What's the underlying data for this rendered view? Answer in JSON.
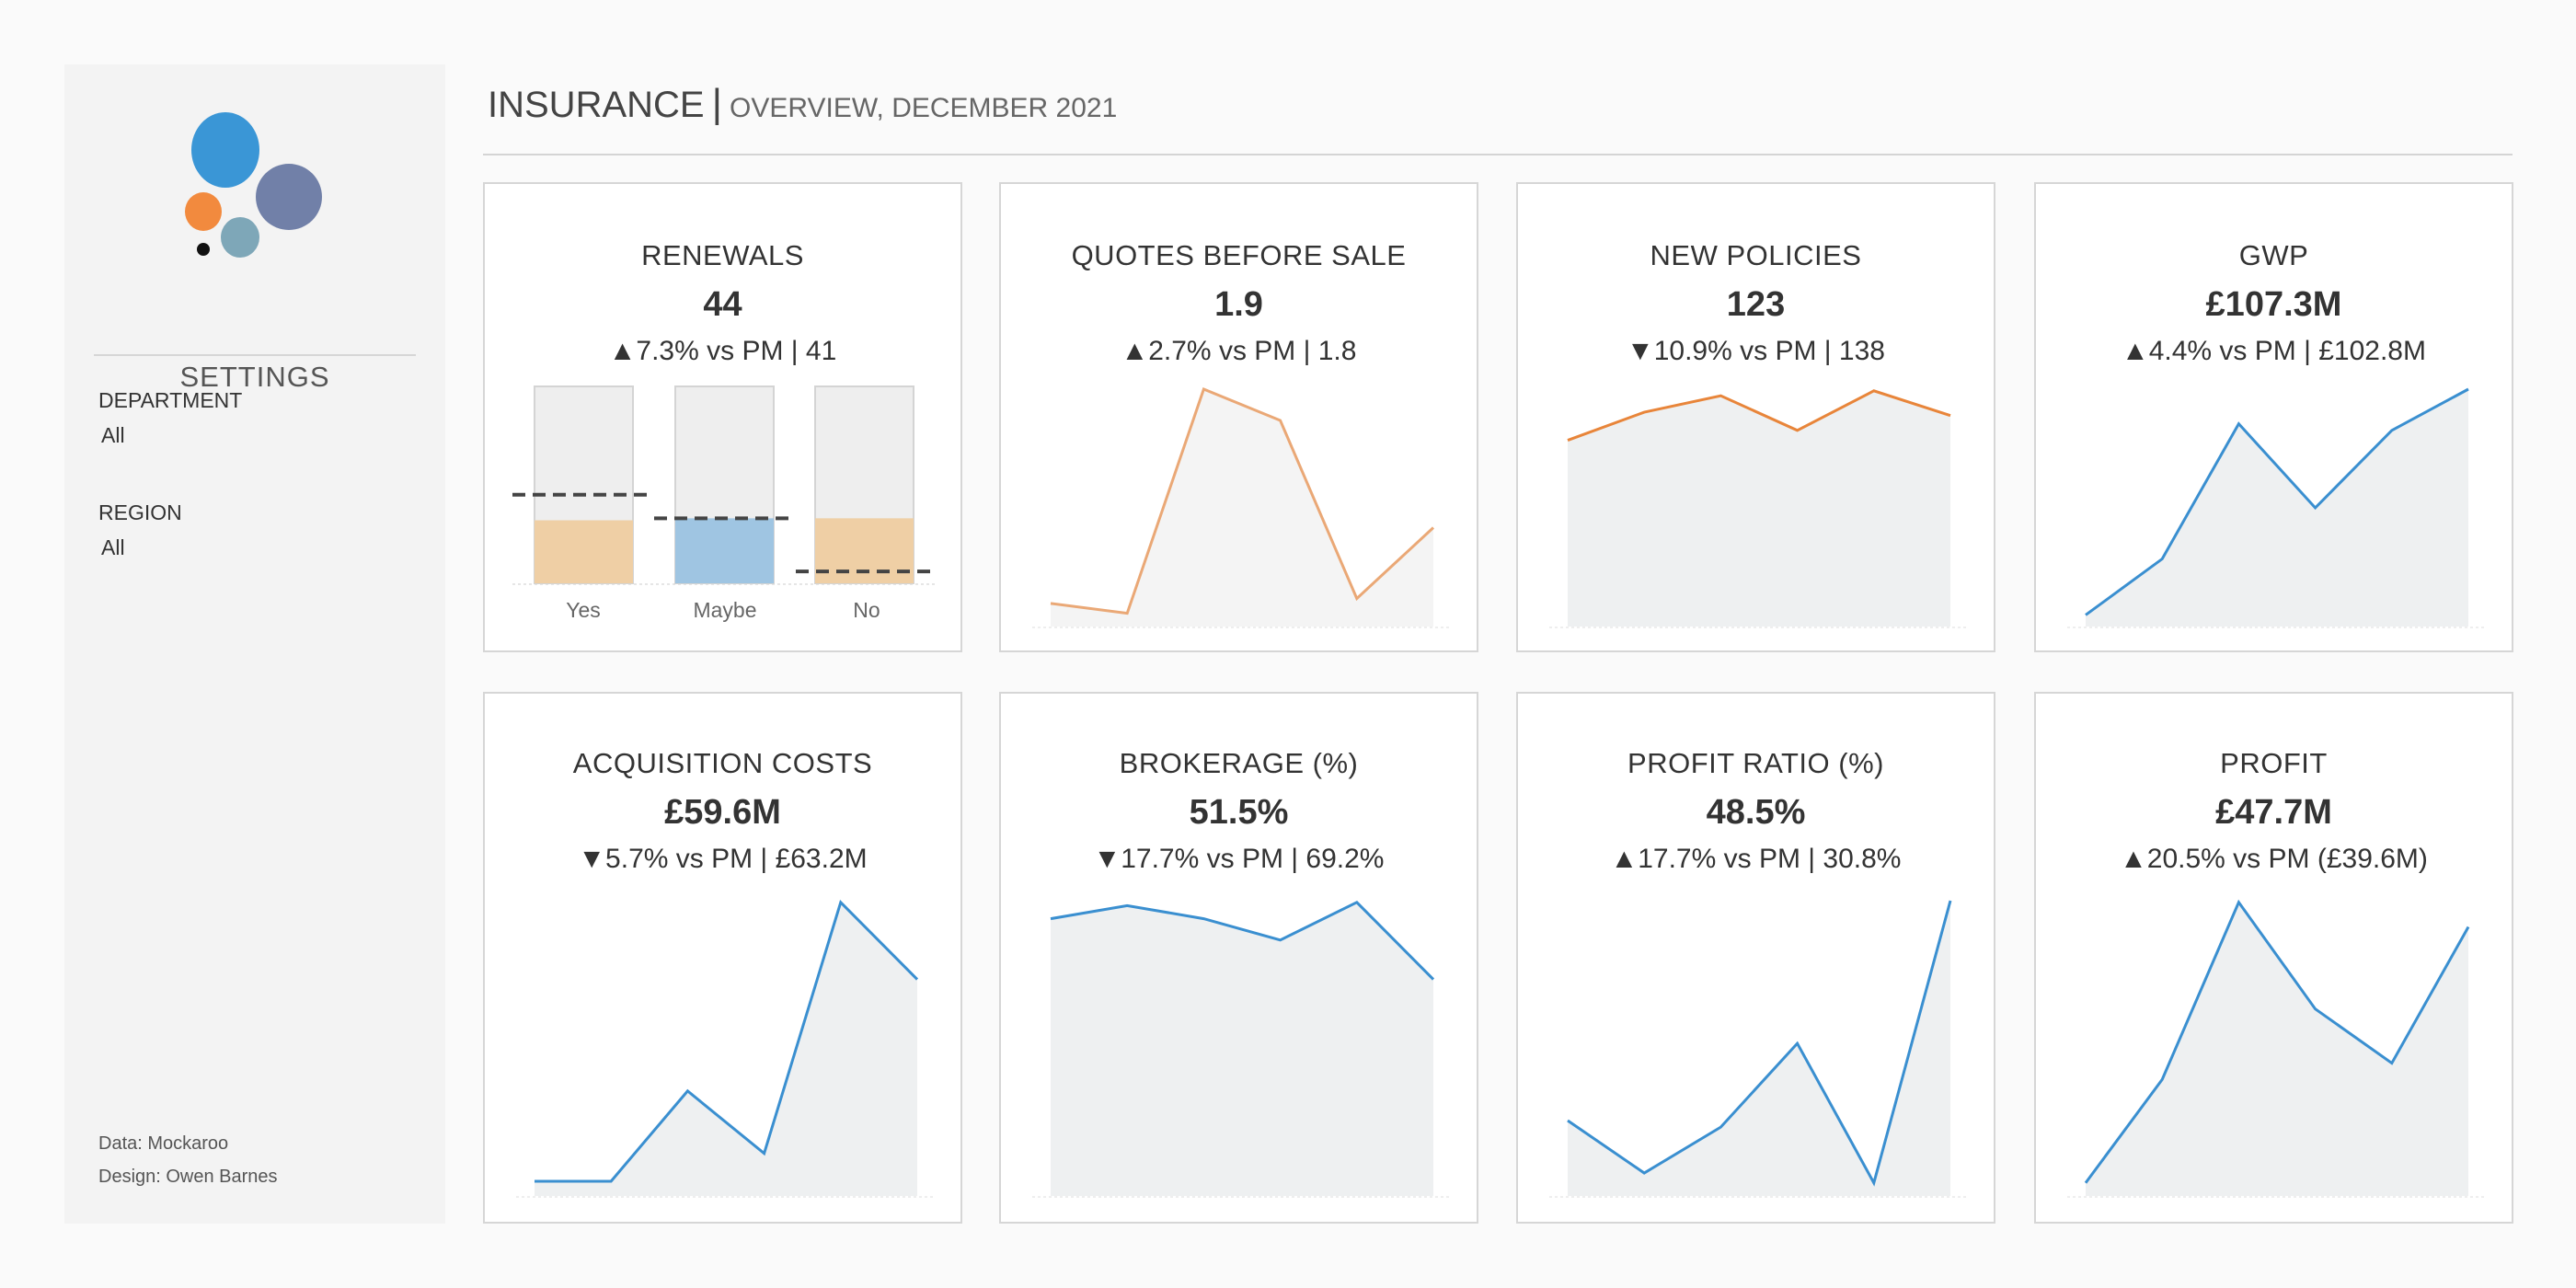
{
  "header": {
    "title": "INSURANCE",
    "separator": "|",
    "subtitle": "OVERVIEW, DECEMBER 2021"
  },
  "sidebar": {
    "settings_label": "SETTINGS",
    "filters": [
      {
        "label": "DEPARTMENT",
        "value": "All"
      },
      {
        "label": "REGION",
        "value": "All"
      }
    ],
    "footer": [
      "Data: Mockaroo",
      "Design: Owen Barnes"
    ],
    "logo_colors": [
      "#3a96d6",
      "#7180a8",
      "#f28a3e",
      "#7ea7b8",
      "#111111"
    ]
  },
  "colors": {
    "orange_line": "#e8853a",
    "light_orange_line": "#eaa876",
    "blue_line": "#3a8fd0",
    "area_fill": "#eef0f1",
    "bar_bg": "#eeeeee",
    "bar_orange": "#efcfa5",
    "bar_blue": "#9fc5e2",
    "ref_line": "#444444"
  },
  "cards": [
    {
      "title": "RENEWALS",
      "value": "44",
      "delta": "▲7.3% vs PM | 41"
    },
    {
      "title": "QUOTES BEFORE SALE",
      "value": "1.9",
      "delta": "▲2.7% vs PM | 1.8"
    },
    {
      "title": "NEW POLICIES",
      "value": "123",
      "delta": "▼10.9% vs PM | 138"
    },
    {
      "title": "GWP",
      "value": "£107.3M",
      "delta": "▲4.4% vs PM | £102.8M"
    },
    {
      "title": "ACQUISITION COSTS",
      "value": "£59.6M",
      "delta": "▼5.7% vs PM | £63.2M"
    },
    {
      "title": "BROKERAGE (%)",
      "value": "51.5%",
      "delta": "▼17.7% vs PM | 69.2%"
    },
    {
      "title": "PROFIT RATIO (%)",
      "value": "48.5%",
      "delta": "▲17.7% vs PM | 30.8%"
    },
    {
      "title": "PROFIT",
      "value": "£47.7M",
      "delta": "▲20.5% vs PM (£39.6M)"
    }
  ],
  "chart_data": [
    {
      "type": "bar",
      "categories": [
        "Yes",
        "Maybe",
        "No"
      ],
      "values": [
        0.32,
        0.33,
        0.33
      ],
      "reference": [
        0.45,
        0.33,
        0.06
      ],
      "ylim": [
        0,
        1
      ],
      "highlight": "Maybe"
    },
    {
      "type": "area",
      "values": [
        14,
        8,
        144,
        125,
        17,
        60
      ],
      "ylim": [
        0,
        144
      ],
      "color": "#eaa876"
    },
    {
      "type": "area",
      "values": [
        113,
        130,
        140,
        119,
        143,
        128
      ],
      "ylim": [
        0,
        144
      ],
      "color": "#e8853a"
    },
    {
      "type": "area",
      "values": [
        7,
        41,
        123,
        72,
        119,
        144
      ],
      "ylim": [
        0,
        144
      ],
      "color": "#3a8fd0"
    },
    {
      "type": "area",
      "values": [
        9,
        9,
        64,
        26,
        179,
        132
      ],
      "ylim": [
        0,
        180
      ],
      "color": "#3a8fd0"
    },
    {
      "type": "area",
      "values": [
        169,
        177,
        169,
        156,
        179,
        132
      ],
      "ylim": [
        0,
        180
      ],
      "color": "#3a8fd0"
    },
    {
      "type": "area",
      "values": [
        46,
        14,
        42,
        93,
        8,
        180
      ],
      "ylim": [
        0,
        180
      ],
      "color": "#3a8fd0"
    },
    {
      "type": "area",
      "values": [
        8,
        71,
        179,
        114,
        81,
        164
      ],
      "ylim": [
        0,
        180
      ],
      "color": "#3a8fd0"
    }
  ]
}
